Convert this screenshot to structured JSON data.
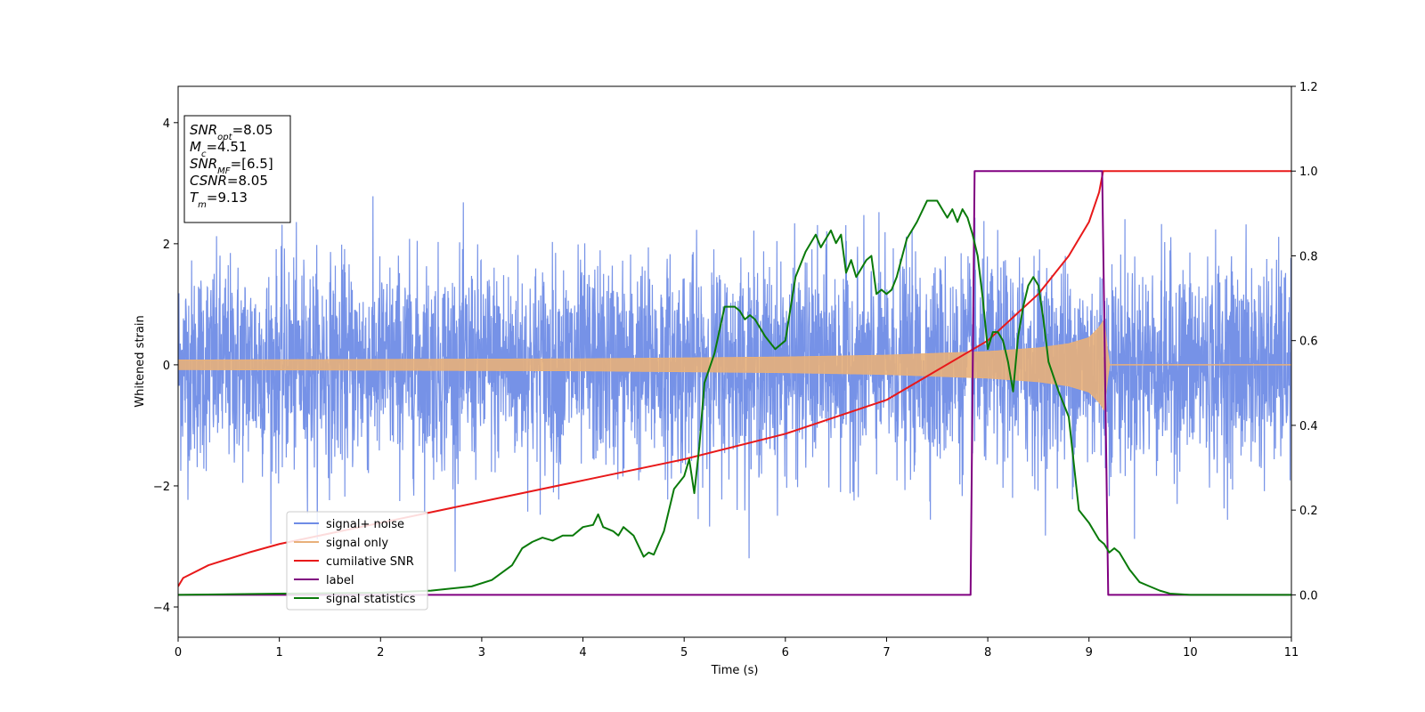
{
  "chart_data": {
    "type": "line",
    "xlabel": "Time (s)",
    "ylabel_left": "Whitened strain",
    "ylabel_right": "",
    "xlim": [
      0,
      11
    ],
    "ylim_left": [
      -4.5,
      4.6
    ],
    "ylim_right": [
      -0.1,
      1.2
    ],
    "x_ticks": [
      0,
      1,
      2,
      3,
      4,
      5,
      6,
      7,
      8,
      9,
      10,
      11
    ],
    "x_tick_labels": [
      "0",
      "1",
      "2",
      "3",
      "4",
      "5",
      "6",
      "7",
      "8",
      "9",
      "10",
      "11"
    ],
    "y_left_ticks": [
      -4,
      -2,
      0,
      2,
      4
    ],
    "y_left_tick_labels": [
      "−4",
      "−2",
      "0",
      "2",
      "4"
    ],
    "y_right_ticks": [
      0.0,
      0.2,
      0.4,
      0.6,
      0.8,
      1.0,
      1.2
    ],
    "y_right_tick_labels": [
      "0.0",
      "0.2",
      "0.4",
      "0.6",
      "0.8",
      "1.0",
      "1.2"
    ],
    "grid": false,
    "legend_position": "lower-left",
    "info_box": [
      {
        "base": "SNR",
        "sub": "opt",
        "value": "=8.05"
      },
      {
        "base": "M",
        "sub": "c",
        "value": "=4.51"
      },
      {
        "base": "SNR",
        "sub": "MF",
        "value": "=[6.5]"
      },
      {
        "base": "CSNR",
        "sub": "",
        "value": "=8.05"
      },
      {
        "base": "T",
        "sub": "m",
        "value": "=9.13"
      }
    ],
    "series": [
      {
        "name": "signal+ noise",
        "axis": "left",
        "color": "#6f8ce6",
        "style": "dense noise, approx. ±1.9 typical band, peaks to about ±4.2"
      },
      {
        "name": "signal only",
        "axis": "left",
        "color": "#e8b07a",
        "style": "chirp envelope",
        "envelope": {
          "x": [
            0,
            2,
            4,
            6,
            7,
            8,
            8.5,
            8.8,
            9.0,
            9.1,
            9.15,
            9.2,
            11
          ],
          "y": [
            0.08,
            0.09,
            0.1,
            0.13,
            0.16,
            0.22,
            0.28,
            0.35,
            0.45,
            0.62,
            0.75,
            0.0,
            0.0
          ]
        }
      },
      {
        "name": "cumilative SNR",
        "axis": "right",
        "color": "#e8191a",
        "x": [
          0,
          0.05,
          0.3,
          0.7,
          1,
          2,
          3,
          4,
          5,
          6,
          7,
          8,
          8.5,
          8.8,
          9.0,
          9.1,
          9.14,
          11
        ],
        "y": [
          0.02,
          0.04,
          0.07,
          0.1,
          0.12,
          0.17,
          0.22,
          0.27,
          0.32,
          0.38,
          0.46,
          0.6,
          0.71,
          0.8,
          0.88,
          0.95,
          1.0,
          1.0
        ]
      },
      {
        "name": "label",
        "axis": "right",
        "color": "#800080",
        "x": [
          0,
          7.83,
          7.87,
          9.13,
          9.19,
          11
        ],
        "y": [
          0,
          0,
          1,
          1,
          0,
          0
        ]
      },
      {
        "name": "signal statistics",
        "axis": "right",
        "color": "#0a7a0a",
        "x": [
          0,
          1,
          2,
          2.5,
          2.9,
          3.1,
          3.3,
          3.4,
          3.5,
          3.6,
          3.7,
          3.8,
          3.9,
          4.0,
          4.1,
          4.15,
          4.2,
          4.3,
          4.35,
          4.4,
          4.5,
          4.6,
          4.65,
          4.7,
          4.8,
          4.9,
          5.0,
          5.05,
          5.1,
          5.15,
          5.2,
          5.3,
          5.4,
          5.5,
          5.55,
          5.6,
          5.65,
          5.7,
          5.75,
          5.8,
          5.9,
          6.0,
          6.1,
          6.2,
          6.3,
          6.35,
          6.4,
          6.45,
          6.5,
          6.55,
          6.6,
          6.65,
          6.7,
          6.8,
          6.85,
          6.9,
          6.95,
          7.0,
          7.05,
          7.1,
          7.2,
          7.3,
          7.4,
          7.5,
          7.55,
          7.6,
          7.65,
          7.7,
          7.75,
          7.8,
          7.85,
          7.9,
          7.95,
          8.0,
          8.05,
          8.1,
          8.15,
          8.2,
          8.25,
          8.3,
          8.35,
          8.4,
          8.45,
          8.5,
          8.55,
          8.6,
          8.7,
          8.8,
          8.9,
          9.0,
          9.05,
          9.1,
          9.15,
          9.2,
          9.25,
          9.3,
          9.35,
          9.4,
          9.5,
          9.6,
          9.7,
          9.8,
          10,
          11
        ],
        "y": [
          0.0,
          0.003,
          0.005,
          0.01,
          0.02,
          0.035,
          0.07,
          0.11,
          0.125,
          0.135,
          0.128,
          0.14,
          0.14,
          0.16,
          0.165,
          0.19,
          0.16,
          0.15,
          0.14,
          0.16,
          0.14,
          0.09,
          0.1,
          0.095,
          0.15,
          0.25,
          0.28,
          0.32,
          0.24,
          0.35,
          0.5,
          0.57,
          0.68,
          0.68,
          0.67,
          0.65,
          0.66,
          0.65,
          0.63,
          0.61,
          0.58,
          0.6,
          0.75,
          0.81,
          0.85,
          0.82,
          0.84,
          0.86,
          0.83,
          0.85,
          0.76,
          0.79,
          0.75,
          0.79,
          0.8,
          0.71,
          0.72,
          0.71,
          0.72,
          0.75,
          0.84,
          0.88,
          0.93,
          0.93,
          0.91,
          0.89,
          0.91,
          0.88,
          0.91,
          0.89,
          0.85,
          0.8,
          0.7,
          0.58,
          0.62,
          0.62,
          0.6,
          0.55,
          0.48,
          0.61,
          0.68,
          0.73,
          0.75,
          0.73,
          0.65,
          0.55,
          0.48,
          0.42,
          0.2,
          0.17,
          0.15,
          0.13,
          0.12,
          0.1,
          0.11,
          0.1,
          0.08,
          0.06,
          0.03,
          0.02,
          0.01,
          0.003,
          0.0,
          0.0
        ]
      }
    ]
  }
}
